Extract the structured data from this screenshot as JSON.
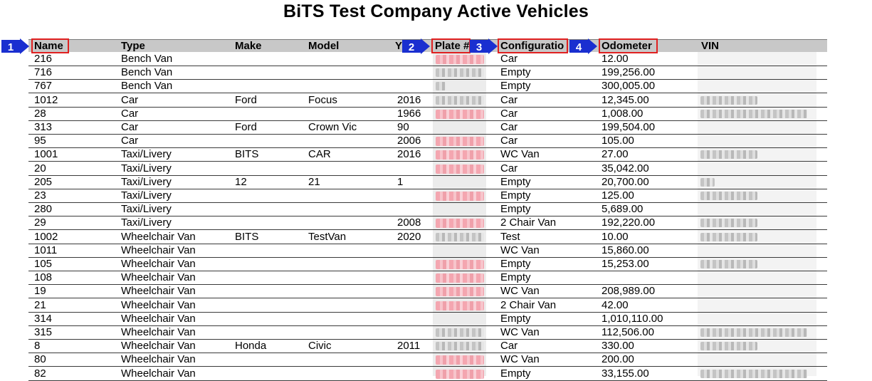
{
  "title": "BiTS Test Company Active Vehicles",
  "columns": {
    "name": "Name",
    "type": "Type",
    "make": "Make",
    "model": "Model",
    "year": "Y",
    "plate": "Plate #",
    "config": "Configuratio",
    "odometer": "Odometer",
    "vin": "VIN"
  },
  "callouts": [
    "1",
    "2",
    "3",
    "4"
  ],
  "rows": [
    {
      "name": "216",
      "type": "Bench Van",
      "make": "",
      "model": "",
      "year": "",
      "plate": "red",
      "config": "Car",
      "odometer": "12.00",
      "vin": "none"
    },
    {
      "name": "716",
      "type": "Bench Van",
      "make": "",
      "model": "",
      "year": "",
      "plate": "gray",
      "config": "Empty",
      "odometer": "199,256.00",
      "vin": "none"
    },
    {
      "name": "767",
      "type": "Bench Van",
      "make": "",
      "model": "",
      "year": "",
      "plate": "gray-small",
      "config": "Empty",
      "odometer": "300,005.00",
      "vin": "none"
    },
    {
      "name": "1012",
      "type": "Car",
      "make": "Ford",
      "model": "Focus",
      "year": "2016",
      "plate": "gray",
      "config": "Car",
      "odometer": "12,345.00",
      "vin": "gray"
    },
    {
      "name": "28",
      "type": "Car",
      "make": "",
      "model": "",
      "year": "1966",
      "plate": "red",
      "config": "Car",
      "odometer": "1,008.00",
      "vin": "gray-long"
    },
    {
      "name": "313",
      "type": "Car",
      "make": "Ford",
      "model": "Crown Vic",
      "year": "90",
      "plate": "none",
      "config": "Car",
      "odometer": "199,504.00",
      "vin": "none"
    },
    {
      "name": "95",
      "type": "Car",
      "make": "",
      "model": "",
      "year": "2006",
      "plate": "red",
      "config": "Car",
      "odometer": "105.00",
      "vin": "none"
    },
    {
      "name": "1001",
      "type": "Taxi/Livery",
      "make": "BITS",
      "model": "CAR",
      "year": "2016",
      "plate": "red",
      "config": "WC Van",
      "odometer": "27.00",
      "vin": "gray"
    },
    {
      "name": "20",
      "type": "Taxi/Livery",
      "make": "",
      "model": "",
      "year": "",
      "plate": "red",
      "config": "Car",
      "odometer": "35,042.00",
      "vin": "none"
    },
    {
      "name": "205",
      "type": "Taxi/Livery",
      "make": "12",
      "model": "21",
      "year": "1",
      "plate": "none",
      "config": "Empty",
      "odometer": "20,700.00",
      "vin": "gray-small"
    },
    {
      "name": "23",
      "type": "Taxi/Livery",
      "make": "",
      "model": "",
      "year": "",
      "plate": "red",
      "config": "Empty",
      "odometer": "125.00",
      "vin": "gray"
    },
    {
      "name": "280",
      "type": "Taxi/Livery",
      "make": "",
      "model": "",
      "year": "",
      "plate": "none",
      "config": "Empty",
      "odometer": "5,689.00",
      "vin": "none"
    },
    {
      "name": "29",
      "type": "Taxi/Livery",
      "make": "",
      "model": "",
      "year": "2008",
      "plate": "red",
      "config": "2 Chair Van",
      "odometer": "192,220.00",
      "vin": "gray"
    },
    {
      "name": "1002",
      "type": "Wheelchair Van",
      "make": "BITS",
      "model": "TestVan",
      "year": "2020",
      "plate": "gray",
      "config": "Test",
      "odometer": "10.00",
      "vin": "gray"
    },
    {
      "name": "1011",
      "type": "Wheelchair Van",
      "make": "",
      "model": "",
      "year": "",
      "plate": "none",
      "config": "WC Van",
      "odometer": "15,860.00",
      "vin": "none"
    },
    {
      "name": "105",
      "type": "Wheelchair Van",
      "make": "",
      "model": "",
      "year": "",
      "plate": "red",
      "config": "Empty",
      "odometer": "15,253.00",
      "vin": "gray"
    },
    {
      "name": "108",
      "type": "Wheelchair Van",
      "make": "",
      "model": "",
      "year": "",
      "plate": "red",
      "config": "Empty",
      "odometer": "",
      "vin": "none"
    },
    {
      "name": "19",
      "type": "Wheelchair Van",
      "make": "",
      "model": "",
      "year": "",
      "plate": "red",
      "config": "WC Van",
      "odometer": "208,989.00",
      "vin": "none"
    },
    {
      "name": "21",
      "type": "Wheelchair Van",
      "make": "",
      "model": "",
      "year": "",
      "plate": "red",
      "config": "2 Chair Van",
      "odometer": "42.00",
      "vin": "none"
    },
    {
      "name": "314",
      "type": "Wheelchair Van",
      "make": "",
      "model": "",
      "year": "",
      "plate": "none",
      "config": "Empty",
      "odometer": "1,010,110.00",
      "vin": "none"
    },
    {
      "name": "315",
      "type": "Wheelchair Van",
      "make": "",
      "model": "",
      "year": "",
      "plate": "gray",
      "config": "WC Van",
      "odometer": "112,506.00",
      "vin": "gray-long"
    },
    {
      "name": "8",
      "type": "Wheelchair Van",
      "make": "Honda",
      "model": "Civic",
      "year": "2011",
      "plate": "gray",
      "config": "Car",
      "odometer": "330.00",
      "vin": "gray"
    },
    {
      "name": "80",
      "type": "Wheelchair Van",
      "make": "",
      "model": "",
      "year": "",
      "plate": "red",
      "config": "WC Van",
      "odometer": "200.00",
      "vin": "none"
    },
    {
      "name": "82",
      "type": "Wheelchair Van",
      "make": "",
      "model": "",
      "year": "",
      "plate": "red",
      "config": "Empty",
      "odometer": "33,155.00",
      "vin": "gray-long"
    }
  ],
  "colors": {
    "header_bg": "#c8c8c8",
    "callout_blue": "#1a2fd0",
    "highlight_red": "#e02020",
    "redact_red": "#f4a6b0",
    "redact_gray": "#c4c4c4"
  }
}
